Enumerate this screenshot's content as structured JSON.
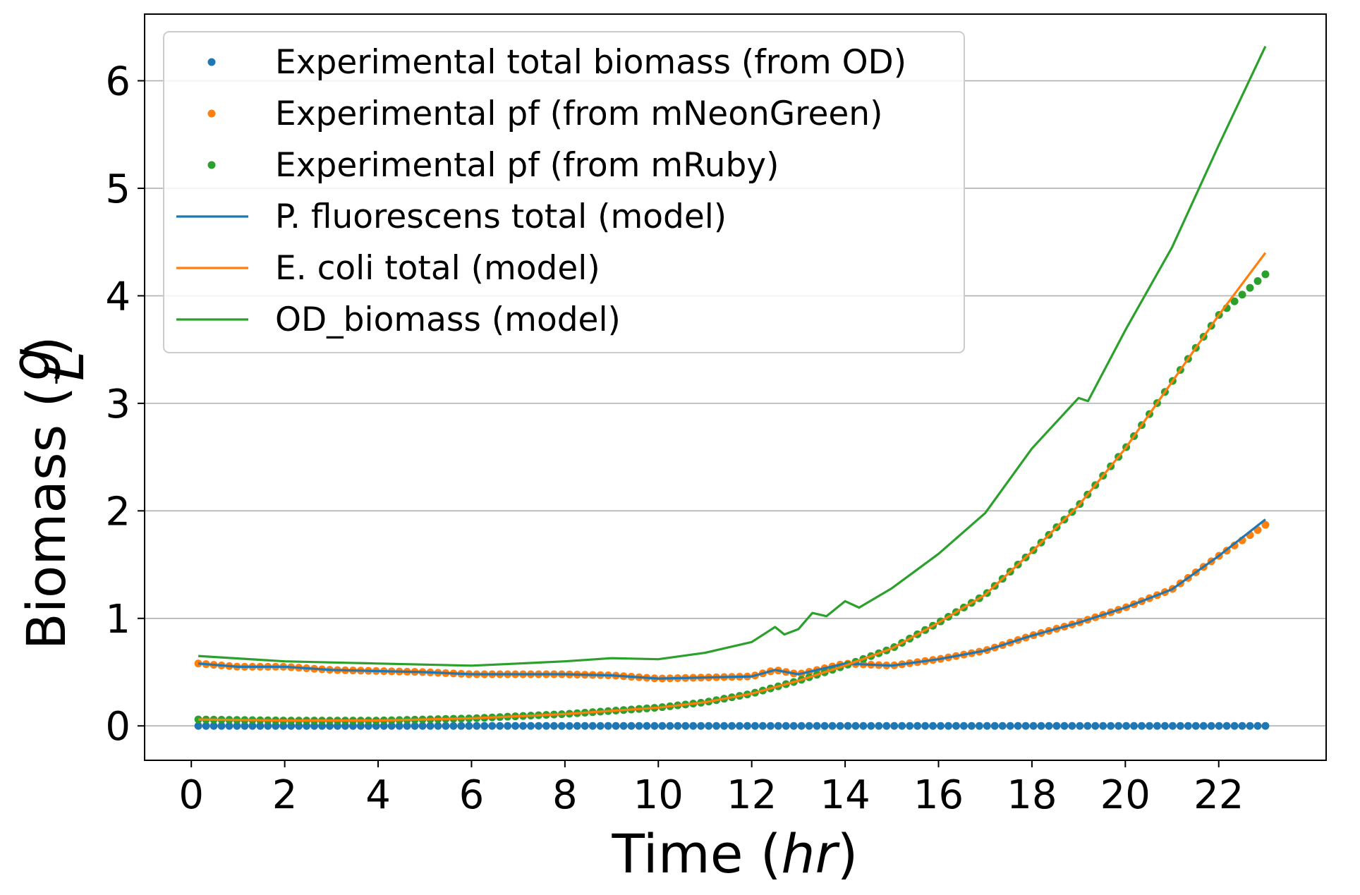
{
  "chart_data": {
    "type": "line",
    "xlabel": "Time (hr)",
    "ylabel": "Biomass (g/L)",
    "xlim": [
      -1.0,
      24.3
    ],
    "ylim": [
      -0.32,
      6.62
    ],
    "xticks": [
      0,
      2,
      4,
      6,
      8,
      10,
      12,
      14,
      16,
      18,
      20,
      22
    ],
    "yticks": [
      0,
      1,
      2,
      3,
      4,
      5,
      6
    ],
    "grid": "y",
    "legend_position": "top-left",
    "colors": {
      "blue": "#1f77b4",
      "orange": "#ff7f0e",
      "green": "#2ca02c"
    },
    "series": [
      {
        "name": "Experimental total biomass (from OD)",
        "style": "points",
        "color": "#1f77b4",
        "x": [
          0.15,
          23.0
        ],
        "y": [
          0.0,
          0.0
        ],
        "constant": true
      },
      {
        "name": "Experimental pf (from mNeonGreen)",
        "style": "points",
        "color": "#ff7f0e",
        "x": [
          0.15,
          1,
          2,
          3,
          4,
          5,
          6,
          7,
          8,
          9,
          10,
          11,
          12,
          12.5,
          13,
          14,
          15,
          16,
          17,
          18,
          19,
          20,
          21,
          22,
          23
        ],
        "y": [
          0.58,
          0.55,
          0.55,
          0.52,
          0.51,
          0.5,
          0.48,
          0.48,
          0.48,
          0.47,
          0.44,
          0.45,
          0.46,
          0.52,
          0.48,
          0.58,
          0.56,
          0.62,
          0.7,
          0.84,
          0.96,
          1.1,
          1.27,
          1.58,
          1.87
        ]
      },
      {
        "name": "Experimental pf (from mRuby)",
        "style": "points",
        "color": "#2ca02c",
        "x": [
          0.15,
          2,
          4,
          6,
          7,
          8,
          9,
          10,
          11,
          12,
          12.5,
          13,
          14,
          15,
          16,
          17,
          18,
          19,
          20,
          21,
          22,
          23
        ],
        "y": [
          0.06,
          0.05,
          0.05,
          0.07,
          0.09,
          0.11,
          0.14,
          0.17,
          0.22,
          0.3,
          0.36,
          0.42,
          0.56,
          0.72,
          0.96,
          1.22,
          1.62,
          2.05,
          2.58,
          3.2,
          3.82,
          4.2
        ]
      },
      {
        "name": "P. fluorescens total (model)",
        "style": "line",
        "color": "#1f77b4",
        "x": [
          0.15,
          1,
          2,
          3,
          4,
          5,
          6,
          7,
          8,
          9,
          10,
          11,
          12,
          12.5,
          13,
          14,
          15,
          16,
          17,
          18,
          19,
          20,
          21,
          22,
          23
        ],
        "y": [
          0.58,
          0.55,
          0.55,
          0.52,
          0.51,
          0.5,
          0.48,
          0.48,
          0.48,
          0.47,
          0.44,
          0.45,
          0.46,
          0.52,
          0.48,
          0.58,
          0.56,
          0.62,
          0.7,
          0.84,
          0.96,
          1.1,
          1.27,
          1.58,
          1.92
        ]
      },
      {
        "name": "E. coli total (model)",
        "style": "line",
        "color": "#ff7f0e",
        "x": [
          0.15,
          2,
          4,
          6,
          7,
          8,
          9,
          10,
          11,
          12,
          12.5,
          13,
          14,
          15,
          16,
          17,
          18,
          19,
          20,
          21,
          22,
          23
        ],
        "y": [
          0.06,
          0.05,
          0.05,
          0.07,
          0.09,
          0.11,
          0.14,
          0.17,
          0.22,
          0.3,
          0.36,
          0.42,
          0.56,
          0.72,
          0.96,
          1.22,
          1.62,
          2.05,
          2.58,
          3.2,
          3.82,
          4.4
        ]
      },
      {
        "name": "OD_biomass (model)",
        "style": "line",
        "color": "#2ca02c",
        "x": [
          0.15,
          2,
          4,
          6,
          7,
          8,
          9,
          10,
          11,
          12,
          12.5,
          12.7,
          13,
          13.3,
          13.6,
          14,
          14.3,
          15,
          16,
          17,
          18,
          19,
          19.2,
          20,
          21,
          22,
          23
        ],
        "y": [
          0.65,
          0.6,
          0.58,
          0.56,
          0.58,
          0.6,
          0.63,
          0.62,
          0.68,
          0.78,
          0.92,
          0.85,
          0.9,
          1.05,
          1.02,
          1.16,
          1.1,
          1.28,
          1.6,
          1.98,
          2.58,
          3.05,
          3.02,
          3.68,
          4.45,
          5.4,
          6.32
        ]
      }
    ]
  },
  "axes": {
    "x_title_main": "Time (",
    "x_title_italic": "hr",
    "x_title_end": ")",
    "y_title_main": "Biomass (",
    "y_title_num": "g",
    "y_title_den": "L",
    "y_title_end": ")"
  }
}
